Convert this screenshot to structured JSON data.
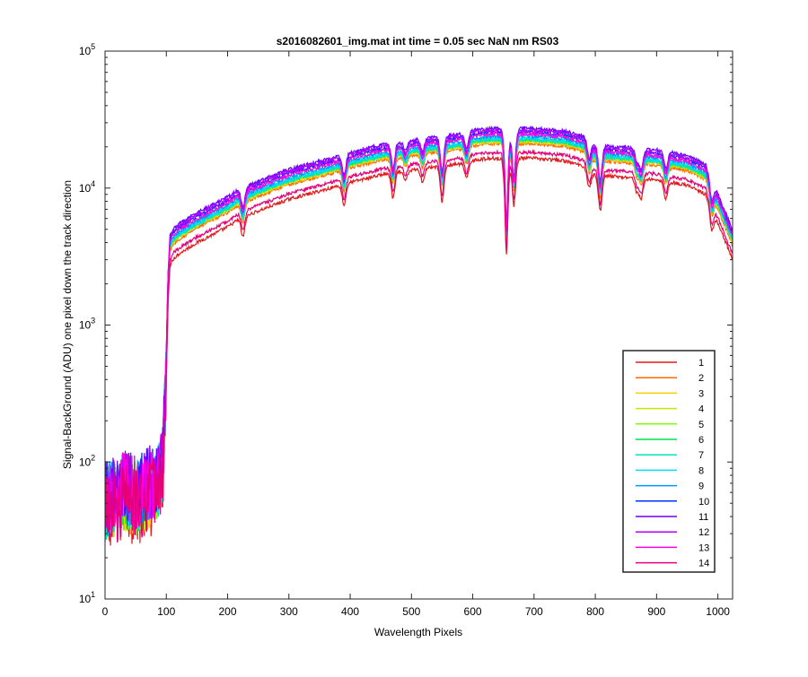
{
  "chart_data": {
    "type": "line",
    "title": "s2016082601_img.mat int time = 0.05 sec  NaN nm RS03",
    "xlabel": "Wavelength Pixels",
    "ylabel": "Signal-BackGround (ADU) one pixel down the track direction",
    "xlim": [
      0,
      1024
    ],
    "ylim": [
      10,
      100000
    ],
    "yscale": "log",
    "grid": false,
    "legend_position": "bottom-right",
    "x_ticks": [
      0,
      100,
      200,
      300,
      400,
      500,
      600,
      700,
      800,
      900,
      1000
    ],
    "x_tick_labels": [
      "0",
      "100",
      "200",
      "300",
      "400",
      "500",
      "600",
      "700",
      "800",
      "900",
      "1000"
    ],
    "y_ticks": [
      {
        "value": 10,
        "base": "10",
        "exp": "1"
      },
      {
        "value": 100,
        "base": "10",
        "exp": "2"
      },
      {
        "value": 1000,
        "base": "10",
        "exp": "3"
      },
      {
        "value": 10000,
        "base": "10",
        "exp": "4"
      },
      {
        "value": 100000,
        "base": "10",
        "exp": "5"
      }
    ],
    "baseline_profile": {
      "x": [
        0,
        10,
        20,
        30,
        40,
        50,
        60,
        70,
        80,
        90,
        95,
        100,
        103,
        106,
        110,
        120,
        150,
        200,
        220,
        250,
        300,
        350,
        400,
        450,
        470,
        500,
        520,
        550,
        580,
        600,
        630,
        650,
        670,
        700,
        750,
        780,
        800,
        850,
        900,
        950,
        980,
        1000,
        1024
      ],
      "y": [
        40,
        45,
        42,
        50,
        48,
        45,
        48,
        52,
        55,
        65,
        90,
        400,
        1500,
        2700,
        3000,
        3300,
        4000,
        5200,
        6000,
        6800,
        8300,
        9500,
        11000,
        12500,
        13000,
        13500,
        14000,
        14500,
        15000,
        16000,
        16500,
        16500,
        16500,
        16500,
        15800,
        14500,
        12500,
        12000,
        11500,
        10500,
        9000,
        5500,
        3000
      ]
    },
    "dips": [
      {
        "x": 225,
        "depth": 0.72
      },
      {
        "x": 390,
        "depth": 0.7
      },
      {
        "x": 470,
        "depth": 0.65
      },
      {
        "x": 490,
        "depth": 0.85
      },
      {
        "x": 518,
        "depth": 0.8
      },
      {
        "x": 550,
        "depth": 0.55
      },
      {
        "x": 590,
        "depth": 0.75
      },
      {
        "x": 655,
        "depth": 0.2
      },
      {
        "x": 667,
        "depth": 0.45
      },
      {
        "x": 790,
        "depth": 0.75
      },
      {
        "x": 808,
        "depth": 0.55
      },
      {
        "x": 868,
        "depth": 0.8
      },
      {
        "x": 875,
        "depth": 0.72
      },
      {
        "x": 915,
        "depth": 0.75
      },
      {
        "x": 990,
        "depth": 0.7
      }
    ],
    "series": [
      {
        "name": "1",
        "color": "#e41a1c",
        "scale": 1.0
      },
      {
        "name": "2",
        "color": "#ff6a00",
        "scale": 1.28
      },
      {
        "name": "3",
        "color": "#ffcc00",
        "scale": 1.32
      },
      {
        "name": "4",
        "color": "#c8e600",
        "scale": 1.34
      },
      {
        "name": "5",
        "color": "#7cfc00",
        "scale": 1.36
      },
      {
        "name": "6",
        "color": "#00e04a",
        "scale": 1.38
      },
      {
        "name": "7",
        "color": "#00e6b8",
        "scale": 1.36
      },
      {
        "name": "8",
        "color": "#00ddff",
        "scale": 1.4
      },
      {
        "name": "9",
        "color": "#0096ff",
        "scale": 1.45
      },
      {
        "name": "10",
        "color": "#0030ff",
        "scale": 1.55
      },
      {
        "name": "11",
        "color": "#6a00ff",
        "scale": 1.65
      },
      {
        "name": "12",
        "color": "#b000ff",
        "scale": 1.6
      },
      {
        "name": "13",
        "color": "#ff00e0",
        "scale": 1.5
      },
      {
        "name": "14",
        "color": "#e6007a",
        "scale": 1.1
      }
    ]
  }
}
